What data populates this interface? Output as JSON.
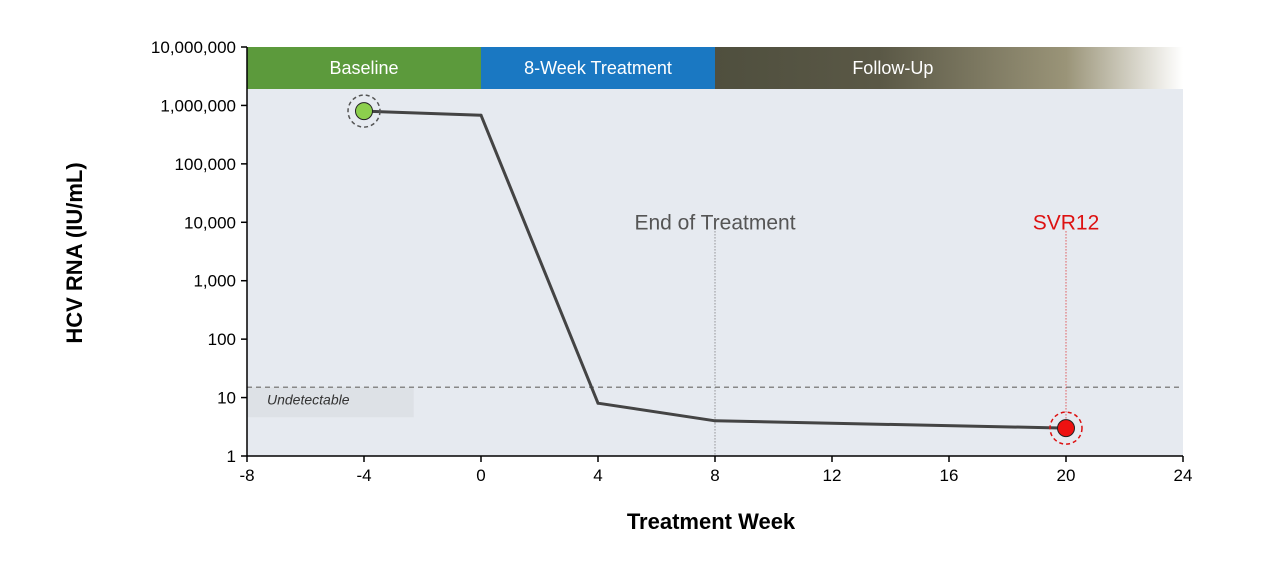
{
  "chart_data": {
    "type": "line",
    "title": "",
    "xlabel": "Treatment Week",
    "ylabel": "HCV RNA (IU/mL)",
    "xlim": [
      -8,
      24
    ],
    "ylim": [
      1,
      10000000
    ],
    "yscale": "log",
    "x_ticks": [
      -8,
      -4,
      0,
      4,
      8,
      12,
      16,
      20,
      24
    ],
    "y_ticks": [
      1,
      10,
      100,
      1000,
      10000,
      100000,
      1000000,
      10000000
    ],
    "y_tick_labels": [
      "1",
      "10",
      "100",
      "1,000",
      "10,000",
      "100,000",
      "1,000,000",
      "10,000,000"
    ],
    "grid": false,
    "series": [
      {
        "x": [
          -4,
          0,
          4,
          8,
          20
        ],
        "y": [
          800000,
          680000,
          8,
          4,
          3
        ],
        "color": "#444444"
      }
    ],
    "phases": [
      {
        "label": "Baseline",
        "start": -8,
        "end": 0,
        "color": "#5c9a3c"
      },
      {
        "label": "8-Week Treatment",
        "start": 0,
        "end": 8,
        "color": "#1a78c2"
      },
      {
        "label": "Follow-Up",
        "start": 8,
        "end": 24,
        "color": "#4f4f3e"
      }
    ],
    "annotations": {
      "undetectable": {
        "label": "Undetectable",
        "y": 15
      },
      "end_of_treatment": {
        "label": "End of Treatment",
        "x": 8
      },
      "svr12": {
        "label": "SVR12",
        "x": 20
      }
    },
    "markers": [
      {
        "x": -4,
        "y": 800000,
        "color": "#8ccf4d",
        "ring": "#555555"
      },
      {
        "x": 20,
        "y": 3,
        "color": "#ee1111",
        "ring": "#dd1111"
      }
    ],
    "colors": {
      "plot_background": "#e6eaf0",
      "line": "#444444",
      "reference_line": "#888888"
    }
  }
}
